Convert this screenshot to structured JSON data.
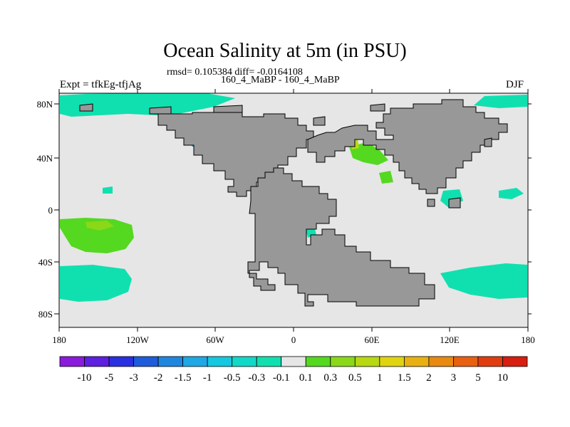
{
  "title": "Ocean Salinity at 5m (in PSU)",
  "stats": "rmsd= 0.105384 diff= -0.0164108",
  "subtitle": "160_4_MaBP - 160_4_MaBP",
  "left_label": "Expt = tfkEg-tfjAg",
  "right_label": "DJF",
  "lat_ticks": [
    "80N",
    "40N",
    "0",
    "40S",
    "80S"
  ],
  "lon_ticks": [
    "180",
    "120W",
    "60W",
    "0",
    "60E",
    "120E",
    "180"
  ],
  "colorbar": {
    "labels": [
      "-10",
      "-5",
      "-3",
      "-2",
      "-1.5",
      "-1",
      "-0.5",
      "-0.3",
      "-0.1",
      "0.1",
      "0.3",
      "0.5",
      "1",
      "1.5",
      "2",
      "3",
      "5",
      "10"
    ],
    "colors": [
      "#8a1bdc",
      "#5e1fe0",
      "#2a2fe0",
      "#1f5cdc",
      "#1f86e0",
      "#1ea8e6",
      "#14c8e0",
      "#12d8c8",
      "#10e0b0",
      "#e6e6e6",
      "#54d820",
      "#8ad818",
      "#b8d810",
      "#e0d410",
      "#e8b010",
      "#e88a10",
      "#e86010",
      "#e03c10",
      "#d81e10"
    ]
  },
  "colors": {
    "land": "#989898",
    "ocean": "#e6e6e6",
    "coast": "#000000"
  }
}
